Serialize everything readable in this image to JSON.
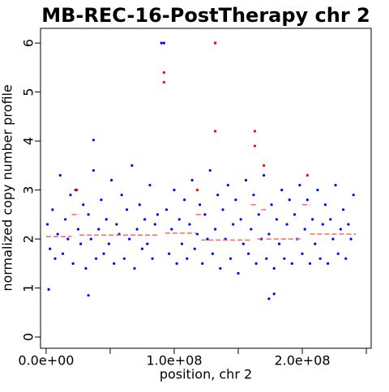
{
  "chart_data": {
    "type": "scatter",
    "title": "MB-REC-16-PostTherapy chr 2",
    "x_label": "position, chr 2",
    "y_label": "normalized copy number profile",
    "xlim": [
      -4400000,
      253800000
    ],
    "ylim": [
      -0.23,
      6.3
    ],
    "xticks": [
      {
        "value": 0,
        "label": "0.0e+00"
      },
      {
        "value": 100000000,
        "label": "1.0e+08"
      },
      {
        "value": 200000000,
        "label": "2.0e+08"
      }
    ],
    "xminor_ticks": [
      50000000,
      150000000,
      250000000
    ],
    "yticks": [
      0,
      1,
      2,
      3,
      4,
      5,
      6
    ],
    "series": [
      {
        "color": "#0000ff",
        "x": [
          1000000.0,
          3000000.0,
          5000000.0,
          7000000.0,
          9000000.0,
          11000000.0,
          13000000.0,
          15000000.0,
          17000000.0,
          19000000.0,
          21000000.0,
          23000000.0,
          25000000.0,
          27000000.0,
          29000000.0,
          31000000.0,
          33000000.0,
          35000000.0,
          37000000.0,
          39000000.0,
          41000000.0,
          43000000.0,
          45000000.0,
          47000000.0,
          49000000.0,
          51000000.0,
          53000000.0,
          55000000.0,
          57000000.0,
          59000000.0,
          61000000.0,
          63000000.0,
          65000000.0,
          67000000.0,
          69000000.0,
          71000000.0,
          73000000.0,
          75000000.0,
          77000000.0,
          79000000.0,
          81000000.0,
          83000000.0,
          85000000.0,
          87000000.0,
          94000000.0,
          96000000.0,
          98000000.0,
          100000000.0,
          102000000.0,
          104000000.0,
          106000000.0,
          108000000.0,
          110000000.0,
          112000000.0,
          114000000.0,
          116000000.0,
          118000000.0,
          120000000.0,
          122000000.0,
          124000000.0,
          126000000.0,
          128000000.0,
          130000000.0,
          132000000.0,
          134000000.0,
          136000000.0,
          138000000.0,
          140000000.0,
          142000000.0,
          144000000.0,
          146000000.0,
          148000000.0,
          150000000.0,
          152000000.0,
          154000000.0,
          156000000.0,
          158000000.0,
          160000000.0,
          162000000.0,
          164000000.0,
          166000000.0,
          168000000.0,
          170000000.0,
          172000000.0,
          174000000.0,
          176000000.0,
          178000000.0,
          180000000.0,
          182000000.0,
          184000000.0,
          186000000.0,
          188000000.0,
          190000000.0,
          192000000.0,
          194000000.0,
          196000000.0,
          198000000.0,
          200000000.0,
          202000000.0,
          204000000.0,
          206000000.0,
          208000000.0,
          210000000.0,
          212000000.0,
          214000000.0,
          216000000.0,
          218000000.0,
          220000000.0,
          222000000.0,
          224000000.0,
          226000000.0,
          228000000.0,
          230000000.0,
          232000000.0,
          234000000.0,
          236000000.0,
          238000000.0,
          240000000.0,
          2000000.0,
          33000000.0,
          37000000.0,
          90000000.0,
          92000000.0,
          132000000.0,
          174000000.0,
          178000000.0
        ],
        "values": [
          2.3,
          1.8,
          2.6,
          1.6,
          2.1,
          3.3,
          1.7,
          2.4,
          2.0,
          2.9,
          1.5,
          3.0,
          2.2,
          1.9,
          2.7,
          1.4,
          2.5,
          2.0,
          3.4,
          1.6,
          2.2,
          2.8,
          1.7,
          2.4,
          1.9,
          3.2,
          1.5,
          2.3,
          2.1,
          2.9,
          1.6,
          2.6,
          2.0,
          3.5,
          1.4,
          2.2,
          2.7,
          1.8,
          2.4,
          1.9,
          3.1,
          1.6,
          2.3,
          2.5,
          2.6,
          1.7,
          2.2,
          3.0,
          1.5,
          2.4,
          1.9,
          2.8,
          1.6,
          2.3,
          3.2,
          1.8,
          2.1,
          2.7,
          1.5,
          2.5,
          2.0,
          3.4,
          1.7,
          2.2,
          2.9,
          1.4,
          2.6,
          2.0,
          3.1,
          1.6,
          2.3,
          2.8,
          1.3,
          2.4,
          1.9,
          3.2,
          1.7,
          2.2,
          2.9,
          1.5,
          2.5,
          2.0,
          3.3,
          1.6,
          2.1,
          2.7,
          1.4,
          2.4,
          1.9,
          3.0,
          1.6,
          2.3,
          2.8,
          1.5,
          2.5,
          2.0,
          3.1,
          1.7,
          2.2,
          2.8,
          1.5,
          2.4,
          1.9,
          3.0,
          1.6,
          2.3,
          2.7,
          1.5,
          2.4,
          2.0,
          3.1,
          1.7,
          2.2,
          2.6,
          1.6,
          2.3,
          2.0,
          2.9,
          0.97,
          0.85,
          4.02,
          6.0,
          6.0,
          6.0,
          0.78,
          0.88
        ]
      },
      {
        "color": "#ff0000",
        "x": [
          24000000.0,
          92000000.0,
          92000000.0,
          118000000.0,
          132000000.0,
          132000000.0,
          163000000.0,
          163000000.0,
          170000000.0,
          204000000.0
        ],
        "values": [
          3.0,
          5.2,
          5.4,
          3.0,
          6.0,
          4.2,
          4.2,
          3.9,
          3.5,
          3.3
        ]
      }
    ],
    "segments_color": "#ff6666",
    "segments": [
      {
        "start": 0,
        "end": 20000000,
        "value": 2.05
      },
      {
        "start": 20000000,
        "end": 26000000,
        "value": 2.5
      },
      {
        "start": 26000000,
        "end": 88000000,
        "value": 2.08
      },
      {
        "start": 93000000,
        "end": 117000000,
        "value": 2.12
      },
      {
        "start": 117000000,
        "end": 121000000,
        "value": 2.5
      },
      {
        "start": 121000000,
        "end": 160000000,
        "value": 1.98
      },
      {
        "start": 160000000,
        "end": 165000000,
        "value": 2.7
      },
      {
        "start": 165000000,
        "end": 168000000,
        "value": 2.0
      },
      {
        "start": 168000000,
        "end": 172000000,
        "value": 2.6
      },
      {
        "start": 172000000,
        "end": 200000000,
        "value": 2.0
      },
      {
        "start": 200000000,
        "end": 206000000,
        "value": 2.7
      },
      {
        "start": 206000000,
        "end": 242000000,
        "value": 2.1
      }
    ]
  }
}
